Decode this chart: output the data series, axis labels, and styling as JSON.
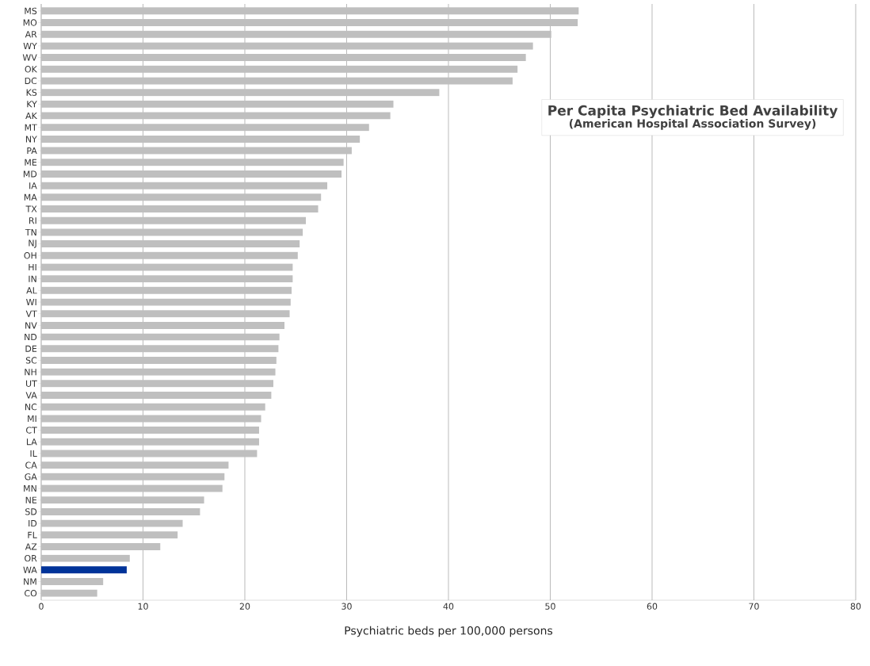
{
  "chart_data": {
    "type": "bar",
    "orientation": "horizontal",
    "title": "Per Capita Psychiatric Bed Availability",
    "subtitle": "(American Hospital Association Survey)",
    "xlabel": "Psychiatric beds per 100,000 persons",
    "categories": [
      "MS",
      "MO",
      "AR",
      "WY",
      "WV",
      "OK",
      "DC",
      "KS",
      "KY",
      "AK",
      "MT",
      "NY",
      "PA",
      "ME",
      "MD",
      "IA",
      "MA",
      "TX",
      "RI",
      "TN",
      "NJ",
      "OH",
      "HI",
      "IN",
      "AL",
      "WI",
      "VT",
      "NV",
      "ND",
      "DE",
      "SC",
      "NH",
      "UT",
      "VA",
      "NC",
      "MI",
      "CT",
      "LA",
      "IL",
      "CA",
      "GA",
      "MN",
      "NE",
      "SD",
      "ID",
      "FL",
      "AZ",
      "OR",
      "WA",
      "NM",
      "CO"
    ],
    "values": [
      52.8,
      52.7,
      50.1,
      48.3,
      47.6,
      46.8,
      46.3,
      39.1,
      34.6,
      34.3,
      32.2,
      31.3,
      30.5,
      29.7,
      29.5,
      28.1,
      27.5,
      27.2,
      26.0,
      25.7,
      25.4,
      25.2,
      24.7,
      24.7,
      24.6,
      24.5,
      24.4,
      23.9,
      23.4,
      23.3,
      23.1,
      23.0,
      22.8,
      22.6,
      22.0,
      21.6,
      21.4,
      21.4,
      21.2,
      18.4,
      18.0,
      17.8,
      16.0,
      15.6,
      13.9,
      13.4,
      11.7,
      8.7,
      8.4,
      6.1,
      5.5
    ],
    "colors": [
      "#bfbfbf",
      "#bfbfbf",
      "#bfbfbf",
      "#bfbfbf",
      "#bfbfbf",
      "#bfbfbf",
      "#bfbfbf",
      "#bfbfbf",
      "#bfbfbf",
      "#bfbfbf",
      "#bfbfbf",
      "#bfbfbf",
      "#bfbfbf",
      "#bfbfbf",
      "#bfbfbf",
      "#bfbfbf",
      "#bfbfbf",
      "#bfbfbf",
      "#bfbfbf",
      "#bfbfbf",
      "#bfbfbf",
      "#bfbfbf",
      "#bfbfbf",
      "#bfbfbf",
      "#bfbfbf",
      "#bfbfbf",
      "#bfbfbf",
      "#bfbfbf",
      "#bfbfbf",
      "#bfbfbf",
      "#bfbfbf",
      "#bfbfbf",
      "#bfbfbf",
      "#bfbfbf",
      "#bfbfbf",
      "#bfbfbf",
      "#bfbfbf",
      "#bfbfbf",
      "#bfbfbf",
      "#bfbfbf",
      "#bfbfbf",
      "#bfbfbf",
      "#bfbfbf",
      "#bfbfbf",
      "#bfbfbf",
      "#bfbfbf",
      "#bfbfbf",
      "#bfbfbf",
      "#003399",
      "#bfbfbf",
      "#bfbfbf"
    ],
    "xlim": [
      0,
      80
    ],
    "xticks": [
      0,
      10,
      20,
      30,
      40,
      50,
      60,
      70,
      80
    ],
    "grid": "x"
  }
}
